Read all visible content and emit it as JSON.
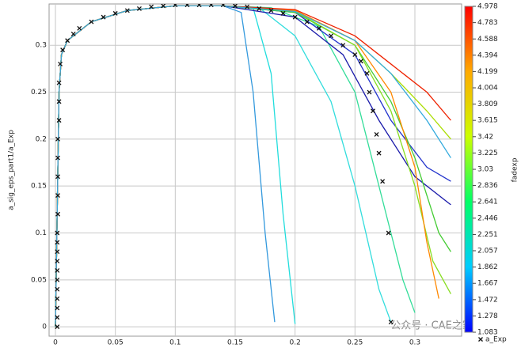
{
  "chart_data": {
    "type": "line",
    "y_label": "a_sig_eps_part1/a_Exp",
    "xlim": [
      -0.0053,
      0.339
    ],
    "ylim": [
      -0.01,
      0.344
    ],
    "xticks": [
      0,
      0.05,
      0.1,
      0.15,
      0.2,
      0.25,
      0.3
    ],
    "yticks": [
      0,
      0.05,
      0.1,
      0.15,
      0.2,
      0.25,
      0.3
    ],
    "grid": true,
    "legend": "bottom-right",
    "watermark": "公众号 · CAE之家",
    "colorbar": {
      "label": "fadexp",
      "lim": [
        1.083,
        4.978
      ],
      "ticks": [
        4.978,
        4.783,
        4.588,
        4.394,
        4.199,
        4.004,
        3.809,
        3.615,
        3.42,
        3.225,
        3.03,
        2.836,
        2.641,
        2.446,
        2.251,
        2.057,
        1.862,
        1.667,
        1.472,
        1.278,
        1.083
      ],
      "colors": [
        "#0000ff",
        "#00ccff",
        "#00ff66",
        "#ccff00",
        "#ffaa00",
        "#ff0000"
      ]
    },
    "series": [
      {
        "color": "#3399dd",
        "x": [
          0,
          0.003,
          0.005,
          0.01,
          0.03,
          0.06,
          0.1,
          0.14,
          0.155,
          0.165,
          0.175,
          0.183
        ],
        "values": [
          0,
          0.25,
          0.29,
          0.305,
          0.325,
          0.337,
          0.342,
          0.342,
          0.335,
          0.25,
          0.1,
          0.005
        ]
      },
      {
        "color": "#22dddd",
        "x": [
          0,
          0.003,
          0.005,
          0.01,
          0.03,
          0.06,
          0.1,
          0.14,
          0.165,
          0.18,
          0.19,
          0.2
        ],
        "values": [
          0,
          0.25,
          0.29,
          0.305,
          0.325,
          0.337,
          0.342,
          0.342,
          0.34,
          0.27,
          0.12,
          0.003
        ]
      },
      {
        "color": "#33dddd",
        "x": [
          0,
          0.003,
          0.005,
          0.01,
          0.03,
          0.06,
          0.1,
          0.14,
          0.17,
          0.2,
          0.23,
          0.25,
          0.27,
          0.28
        ],
        "values": [
          0,
          0.25,
          0.29,
          0.305,
          0.325,
          0.337,
          0.342,
          0.342,
          0.34,
          0.31,
          0.24,
          0.15,
          0.04,
          0.005
        ]
      },
      {
        "color": "#33dd99",
        "x": [
          0,
          0.003,
          0.005,
          0.01,
          0.03,
          0.06,
          0.1,
          0.14,
          0.18,
          0.22,
          0.25,
          0.27,
          0.29,
          0.3
        ],
        "values": [
          0,
          0.25,
          0.29,
          0.305,
          0.325,
          0.337,
          0.342,
          0.342,
          0.34,
          0.32,
          0.25,
          0.15,
          0.05,
          0.015
        ]
      },
      {
        "color": "#1a1aaa",
        "x": [
          0,
          0.003,
          0.005,
          0.01,
          0.03,
          0.06,
          0.1,
          0.14,
          0.2,
          0.24,
          0.27,
          0.3,
          0.33
        ],
        "values": [
          0,
          0.25,
          0.29,
          0.305,
          0.325,
          0.337,
          0.342,
          0.342,
          0.33,
          0.29,
          0.22,
          0.16,
          0.13
        ]
      },
      {
        "color": "#2233cc",
        "x": [
          0,
          0.003,
          0.005,
          0.01,
          0.03,
          0.06,
          0.1,
          0.14,
          0.2,
          0.25,
          0.28,
          0.31,
          0.33
        ],
        "values": [
          0,
          0.25,
          0.29,
          0.305,
          0.325,
          0.337,
          0.342,
          0.342,
          0.335,
          0.29,
          0.22,
          0.17,
          0.155
        ]
      },
      {
        "color": "#44cc33",
        "x": [
          0,
          0.003,
          0.005,
          0.01,
          0.03,
          0.06,
          0.1,
          0.14,
          0.2,
          0.25,
          0.28,
          0.3,
          0.32,
          0.33
        ],
        "values": [
          0,
          0.25,
          0.29,
          0.305,
          0.325,
          0.337,
          0.342,
          0.342,
          0.335,
          0.3,
          0.24,
          0.18,
          0.1,
          0.08
        ]
      },
      {
        "color": "#88dd22",
        "x": [
          0,
          0.003,
          0.005,
          0.01,
          0.03,
          0.06,
          0.1,
          0.14,
          0.2,
          0.25,
          0.28,
          0.3,
          0.315,
          0.33
        ],
        "values": [
          0,
          0.25,
          0.29,
          0.305,
          0.325,
          0.337,
          0.342,
          0.342,
          0.336,
          0.3,
          0.23,
          0.15,
          0.07,
          0.035
        ]
      },
      {
        "color": "#aadd00",
        "x": [
          0,
          0.003,
          0.005,
          0.01,
          0.03,
          0.06,
          0.1,
          0.14,
          0.2,
          0.25,
          0.28,
          0.31,
          0.33
        ],
        "values": [
          0,
          0.25,
          0.29,
          0.305,
          0.325,
          0.337,
          0.342,
          0.342,
          0.337,
          0.305,
          0.27,
          0.23,
          0.2
        ]
      },
      {
        "color": "#ff8800",
        "x": [
          0,
          0.003,
          0.005,
          0.01,
          0.03,
          0.06,
          0.1,
          0.14,
          0.2,
          0.25,
          0.28,
          0.3,
          0.31,
          0.32
        ],
        "values": [
          0,
          0.25,
          0.29,
          0.305,
          0.325,
          0.337,
          0.342,
          0.342,
          0.337,
          0.305,
          0.25,
          0.17,
          0.09,
          0.03
        ]
      },
      {
        "color": "#ee2200",
        "x": [
          0,
          0.003,
          0.005,
          0.01,
          0.03,
          0.06,
          0.1,
          0.14,
          0.2,
          0.25,
          0.28,
          0.31,
          0.33
        ],
        "values": [
          0,
          0.25,
          0.29,
          0.305,
          0.325,
          0.337,
          0.342,
          0.342,
          0.338,
          0.31,
          0.28,
          0.25,
          0.22
        ]
      },
      {
        "color": "#33aadd",
        "x": [
          0,
          0.003,
          0.005,
          0.01,
          0.03,
          0.06,
          0.1,
          0.14,
          0.2,
          0.25,
          0.28,
          0.31,
          0.33
        ],
        "values": [
          0,
          0.25,
          0.29,
          0.305,
          0.325,
          0.337,
          0.342,
          0.342,
          0.336,
          0.305,
          0.27,
          0.22,
          0.18
        ]
      },
      {
        "name": "a_Exp",
        "marker": "x",
        "color": "#111111",
        "x": [
          0.0015,
          0.0015,
          0.0015,
          0.0015,
          0.0015,
          0.0015,
          0.0015,
          0.0015,
          0.0015,
          0.0015,
          0.0015,
          0.002,
          0.002,
          0.002,
          0.002,
          0.002,
          0.003,
          0.003,
          0.003,
          0.004,
          0.006,
          0.01,
          0.015,
          0.02,
          0.03,
          0.04,
          0.05,
          0.06,
          0.07,
          0.08,
          0.09,
          0.1,
          0.11,
          0.12,
          0.13,
          0.14,
          0.15,
          0.16,
          0.17,
          0.18,
          0.19,
          0.2,
          0.21,
          0.22,
          0.23,
          0.24,
          0.25,
          0.255,
          0.26,
          0.262,
          0.265,
          0.268,
          0.27,
          0.273,
          0.278,
          0.28
        ],
        "values": [
          0,
          0.01,
          0.02,
          0.03,
          0.04,
          0.05,
          0.06,
          0.07,
          0.08,
          0.09,
          0.1,
          0.12,
          0.14,
          0.16,
          0.18,
          0.2,
          0.22,
          0.24,
          0.26,
          0.28,
          0.295,
          0.305,
          0.312,
          0.318,
          0.325,
          0.33,
          0.334,
          0.337,
          0.339,
          0.341,
          0.342,
          0.343,
          0.343,
          0.343,
          0.343,
          0.343,
          0.342,
          0.341,
          0.339,
          0.337,
          0.334,
          0.33,
          0.325,
          0.318,
          0.31,
          0.3,
          0.29,
          0.283,
          0.27,
          0.25,
          0.23,
          0.205,
          0.185,
          0.155,
          0.1,
          0.005
        ]
      }
    ]
  }
}
